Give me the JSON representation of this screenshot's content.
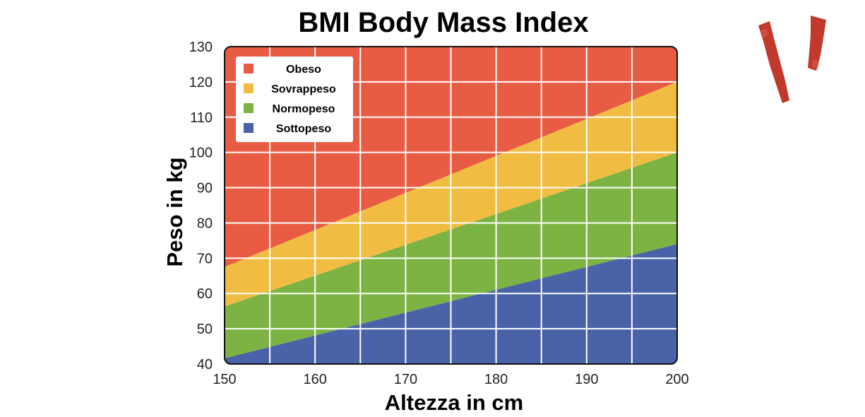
{
  "chart_data": {
    "type": "area",
    "title": "BMI Body Mass Index",
    "xlabel": "Altezza in cm",
    "ylabel": "Peso in kg",
    "xlim": [
      150,
      200
    ],
    "ylim": [
      40,
      130
    ],
    "x_ticks": [
      150,
      160,
      170,
      180,
      190,
      200
    ],
    "y_ticks": [
      40,
      50,
      60,
      70,
      80,
      90,
      100,
      110,
      120,
      130
    ],
    "grid": true,
    "legend_position": "top-left",
    "x": [
      150,
      200
    ],
    "bands": [
      {
        "name": "Obeso",
        "color": "#e85c44",
        "lower": [
          67.5,
          120
        ],
        "upper": [
          130,
          130
        ]
      },
      {
        "name": "Sovrappeso",
        "color": "#f0bd42",
        "lower": [
          56.3,
          100
        ],
        "upper": [
          67.5,
          120
        ]
      },
      {
        "name": "Normopeso",
        "color": "#7cb342",
        "lower": [
          41.6,
          74
        ],
        "upper": [
          56.3,
          100
        ]
      },
      {
        "name": "Sottopeso",
        "color": "#4a63a8",
        "lower": [
          40,
          40
        ],
        "upper": [
          41.6,
          74
        ]
      }
    ]
  },
  "logo": {
    "icon": "red-brush-v-logo-icon",
    "color": "#c0392b"
  }
}
